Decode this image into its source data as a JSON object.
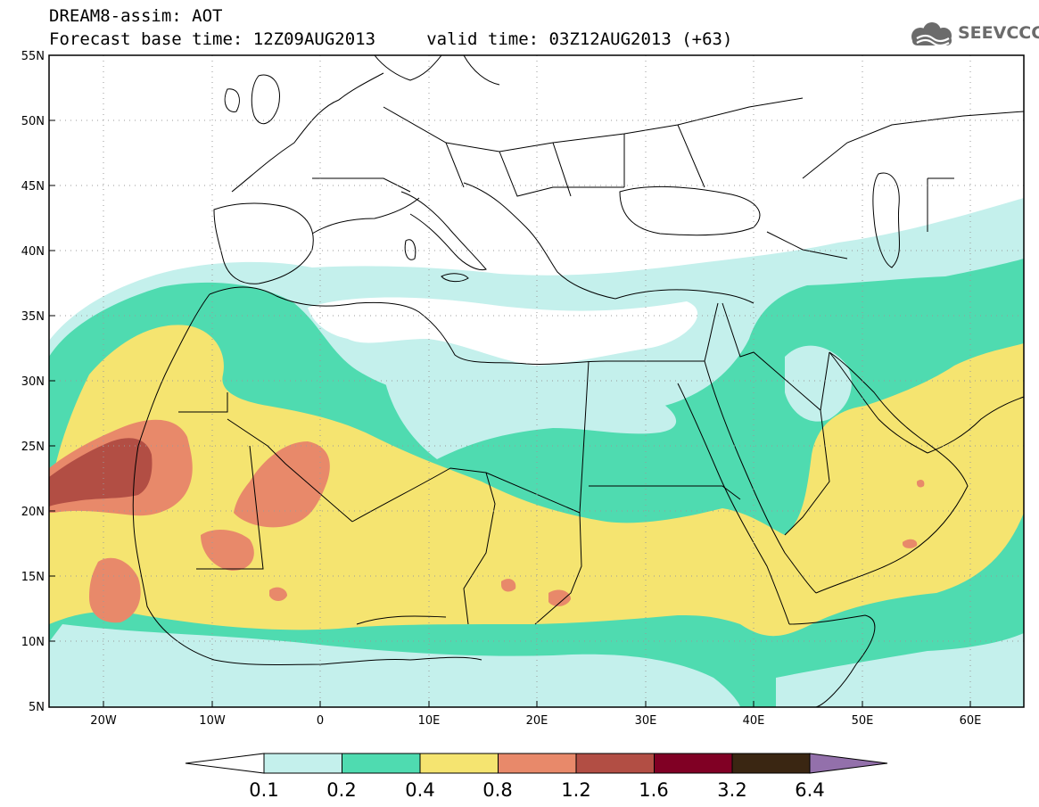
{
  "title": {
    "line1": "DREAM8-assim: AOT",
    "line2": "Forecast base time: 12Z09AUG2013     valid time: 03Z12AUG2013 (+63)"
  },
  "logo": {
    "text": "SEEVCCC",
    "icon": "cloud-icon",
    "color": "#6b6b6b"
  },
  "axes": {
    "lat_labels": [
      "55N",
      "50N",
      "45N",
      "40N",
      "35N",
      "30N",
      "25N",
      "20N",
      "15N",
      "10N",
      "5N"
    ],
    "lon_labels": [
      "20W",
      "10W",
      "0",
      "10E",
      "20E",
      "30E",
      "40E",
      "50E",
      "60E"
    ]
  },
  "legend": {
    "thresholds": [
      "0.1",
      "0.2",
      "0.4",
      "0.8",
      "1.2",
      "1.6",
      "3.2",
      "6.4"
    ],
    "colors": [
      "#c4f0ec",
      "#4fdbb0",
      "#f5e470",
      "#e8896a",
      "#b24e44",
      "#800024",
      "#3a2612",
      "#9370ab"
    ]
  }
}
